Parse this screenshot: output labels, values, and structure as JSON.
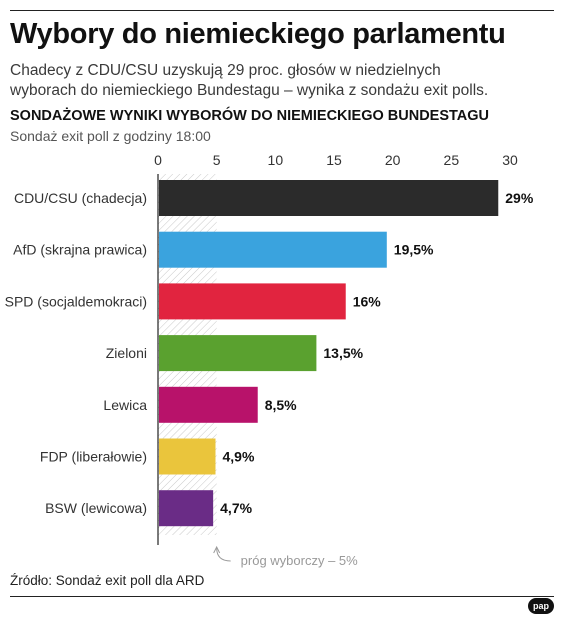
{
  "header": {
    "title": "Wybory do niemieckiego parlamentu",
    "subtitle": "Chadecy z CDU/CSU uzyskują 29 proc. głosów w niedzielnych wyborach do niemieckiego Bundestagu – wynika z sondażu exit polls."
  },
  "chart_data": {
    "type": "bar",
    "orientation": "horizontal",
    "title": "SONDAŻOWE WYNIKI WYBORÓW DO NIEMIECKIEGO BUNDESTAGU",
    "subtitle": "Sondaż exit poll z godziny 18:00",
    "categories": [
      "CDU/CSU (chadecja)",
      "AfD (skrajna prawica)",
      "SPD (socjaldemokraci)",
      "Zieloni",
      "Lewica",
      "FDP (liberałowie)",
      "BSW (lewicowa)"
    ],
    "values": [
      29,
      19.5,
      16,
      13.5,
      8.5,
      4.9,
      4.7
    ],
    "value_labels": [
      "29%",
      "19,5%",
      "16%",
      "13,5%",
      "8,5%",
      "4,9%",
      "4,7%"
    ],
    "colors": [
      "#2b2b2b",
      "#3aa3de",
      "#e1243f",
      "#5aa12f",
      "#b8126a",
      "#eac53c",
      "#6a2c86"
    ],
    "xticks": [
      0,
      5,
      10,
      15,
      20,
      25,
      30
    ],
    "xtick_labels": [
      "0",
      "5",
      "10",
      "15",
      "20",
      "25",
      "30"
    ],
    "xlim": [
      0,
      30
    ],
    "axis_position": "top",
    "threshold": {
      "value": 5,
      "label": "próg wyborczy – 5%"
    }
  },
  "footer": {
    "source": "Źródło: Sondaż exit poll dla ARD",
    "logo_text": "pap"
  }
}
